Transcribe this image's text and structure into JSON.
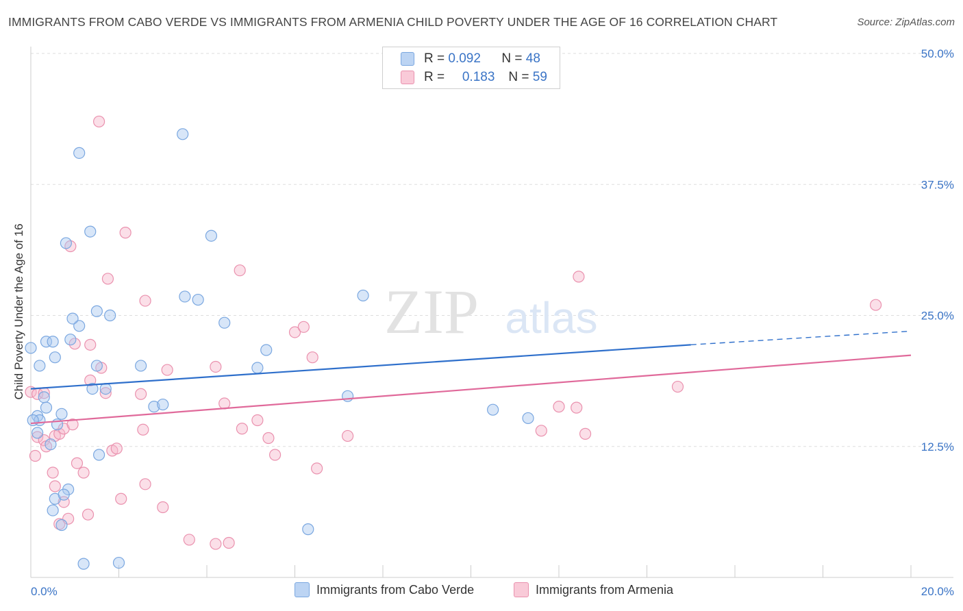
{
  "title": "IMMIGRANTS FROM CABO VERDE VS IMMIGRANTS FROM ARMENIA CHILD POVERTY UNDER THE AGE OF 16 CORRELATION CHART",
  "source": "Source: ZipAtlas.com",
  "watermark": {
    "zip": "ZIP",
    "atlas": "atlas"
  },
  "colors": {
    "blue_fill": "#a8c8f0",
    "blue_stroke": "#7aa7e0",
    "blue_line": "#2e6fcb",
    "pink_fill": "#f6b8cb",
    "pink_stroke": "#ea91ae",
    "pink_line": "#e0699a",
    "axis_text": "#3a74c6",
    "grid": "#dddddd"
  },
  "legend": {
    "rows": [
      {
        "r_label": "R =",
        "r_value": "0.092",
        "n_label": "N =",
        "n_value": "48"
      },
      {
        "r_label": "R =",
        "r_value": "0.183",
        "n_label": "N =",
        "n_value": "59"
      }
    ]
  },
  "chart_data": {
    "type": "scatter",
    "xlabel": "",
    "ylabel": "Child Poverty Under the Age of 16",
    "xlim": [
      0,
      20
    ],
    "ylim": [
      0,
      50
    ],
    "x_tick_labels": [
      "0.0%",
      "20.0%"
    ],
    "y_ticks": [
      12.5,
      25.0,
      37.5,
      50.0
    ],
    "y_tick_labels": [
      "12.5%",
      "25.0%",
      "37.5%",
      "50.0%"
    ],
    "series": [
      {
        "name": "Immigrants from Cabo Verde",
        "R": 0.092,
        "N": 48,
        "trend": {
          "x0": 0,
          "y0": 18.0,
          "x1": 15.0,
          "y1": 22.2,
          "dashed_to_x": 20,
          "dashed_to_y": 23.5
        },
        "points": [
          [
            0.0,
            21.9
          ],
          [
            0.2,
            20.2
          ],
          [
            0.35,
            22.5
          ],
          [
            0.5,
            22.5
          ],
          [
            0.8,
            31.9
          ],
          [
            1.1,
            40.5
          ],
          [
            1.35,
            33.0
          ],
          [
            3.45,
            42.3
          ],
          [
            1.1,
            24.0
          ],
          [
            1.5,
            25.4
          ],
          [
            0.55,
            21.0
          ],
          [
            0.9,
            22.7
          ],
          [
            1.5,
            20.2
          ],
          [
            0.15,
            13.8
          ],
          [
            0.45,
            12.7
          ],
          [
            0.3,
            17.2
          ],
          [
            0.15,
            15.4
          ],
          [
            0.35,
            16.2
          ],
          [
            0.7,
            15.6
          ],
          [
            0.2,
            15.0
          ],
          [
            0.05,
            15.0
          ],
          [
            0.95,
            24.7
          ],
          [
            3.8,
            26.5
          ],
          [
            0.85,
            8.4
          ],
          [
            1.55,
            11.7
          ],
          [
            0.55,
            7.5
          ],
          [
            0.5,
            6.4
          ],
          [
            0.75,
            7.9
          ],
          [
            0.7,
            5.0
          ],
          [
            1.2,
            1.3
          ],
          [
            2.0,
            1.4
          ],
          [
            1.4,
            18.0
          ],
          [
            2.5,
            20.2
          ],
          [
            2.8,
            16.3
          ],
          [
            3.0,
            16.5
          ],
          [
            4.1,
            32.6
          ],
          [
            5.15,
            20.0
          ],
          [
            5.35,
            21.7
          ],
          [
            4.4,
            24.3
          ],
          [
            3.5,
            26.8
          ],
          [
            6.3,
            4.6
          ],
          [
            7.2,
            17.3
          ],
          [
            7.55,
            26.9
          ],
          [
            1.7,
            18.0
          ],
          [
            10.5,
            16.0
          ],
          [
            11.3,
            15.2
          ],
          [
            0.6,
            14.6
          ],
          [
            1.8,
            25.0
          ]
        ]
      },
      {
        "name": "Immigrants from Armenia",
        "R": 0.183,
        "N": 59,
        "trend": {
          "x0": 0,
          "y0": 14.7,
          "x1": 20,
          "y1": 21.2
        },
        "points": [
          [
            0.0,
            17.7
          ],
          [
            1.55,
            43.5
          ],
          [
            2.15,
            32.9
          ],
          [
            0.9,
            31.6
          ],
          [
            1.75,
            28.5
          ],
          [
            2.6,
            26.4
          ],
          [
            4.75,
            29.3
          ],
          [
            12.45,
            28.7
          ],
          [
            19.2,
            26.0
          ],
          [
            0.15,
            17.5
          ],
          [
            0.3,
            17.6
          ],
          [
            1.35,
            18.8
          ],
          [
            1.6,
            20.0
          ],
          [
            1.35,
            22.2
          ],
          [
            1.0,
            22.3
          ],
          [
            1.7,
            17.6
          ],
          [
            2.5,
            17.5
          ],
          [
            3.1,
            19.8
          ],
          [
            4.2,
            20.1
          ],
          [
            4.4,
            16.6
          ],
          [
            4.8,
            14.2
          ],
          [
            5.15,
            15.0
          ],
          [
            5.4,
            13.3
          ],
          [
            5.55,
            11.7
          ],
          [
            6.0,
            23.4
          ],
          [
            6.2,
            23.9
          ],
          [
            6.4,
            21.0
          ],
          [
            6.5,
            10.4
          ],
          [
            7.2,
            13.5
          ],
          [
            12.0,
            16.3
          ],
          [
            12.4,
            16.2
          ],
          [
            11.6,
            14.0
          ],
          [
            12.6,
            13.7
          ],
          [
            14.7,
            18.2
          ],
          [
            0.15,
            13.4
          ],
          [
            0.3,
            13.1
          ],
          [
            0.35,
            12.5
          ],
          [
            0.55,
            13.5
          ],
          [
            0.65,
            13.7
          ],
          [
            0.75,
            14.2
          ],
          [
            0.95,
            14.6
          ],
          [
            0.1,
            11.6
          ],
          [
            0.5,
            10.0
          ],
          [
            0.55,
            8.7
          ],
          [
            0.75,
            7.2
          ],
          [
            0.65,
            5.1
          ],
          [
            1.05,
            10.9
          ],
          [
            1.2,
            10.0
          ],
          [
            1.3,
            6.0
          ],
          [
            1.85,
            12.1
          ],
          [
            1.95,
            12.3
          ],
          [
            2.05,
            7.5
          ],
          [
            2.6,
            8.9
          ],
          [
            3.0,
            6.7
          ],
          [
            3.6,
            3.6
          ],
          [
            4.2,
            3.2
          ],
          [
            4.5,
            3.3
          ],
          [
            0.85,
            5.6
          ],
          [
            2.55,
            14.1
          ]
        ]
      }
    ]
  },
  "bottom_legend": {
    "items": [
      {
        "label": "Immigrants from Cabo Verde"
      },
      {
        "label": "Immigrants from Armenia"
      }
    ]
  }
}
